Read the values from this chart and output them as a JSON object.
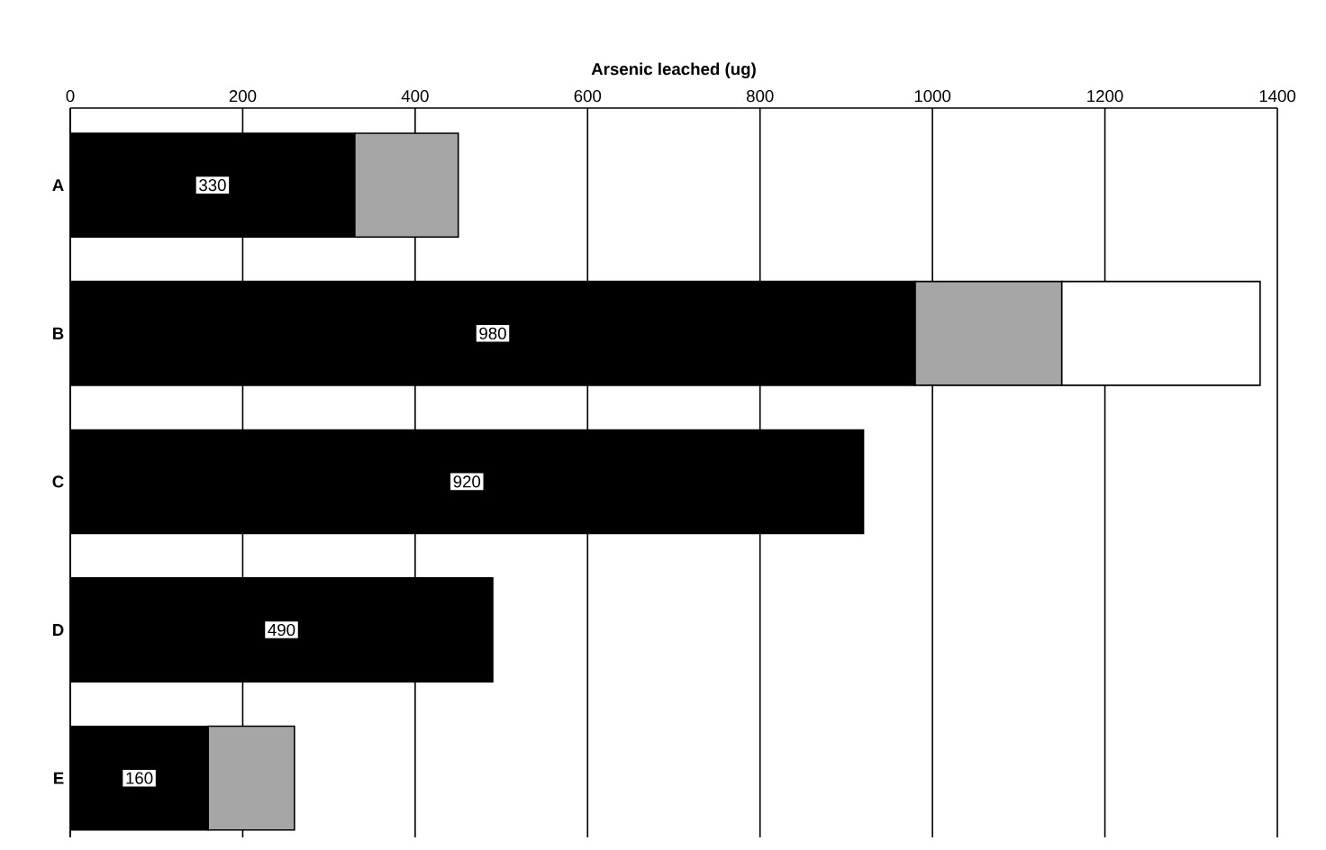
{
  "chart_data": {
    "type": "bar",
    "orientation": "horizontal",
    "stacked": true,
    "xlabel": "Arsenic leached (ug)",
    "categories": [
      "A",
      "B",
      "C",
      "D",
      "E"
    ],
    "series": [
      {
        "color": "#000000",
        "values": [
          330,
          980,
          920,
          490,
          160
        ],
        "value_labels": [
          "330",
          "980",
          "920",
          "490",
          "160"
        ]
      },
      {
        "color": "#a6a6a6",
        "values": [
          120,
          170,
          null,
          null,
          100
        ]
      },
      {
        "color": "#ffffff",
        "values": [
          null,
          230,
          null,
          null,
          null
        ]
      }
    ],
    "xlim": [
      0,
      1400
    ],
    "xticks": [
      0,
      200,
      400,
      600,
      800,
      1000,
      1200,
      1400
    ],
    "grid": "x"
  }
}
